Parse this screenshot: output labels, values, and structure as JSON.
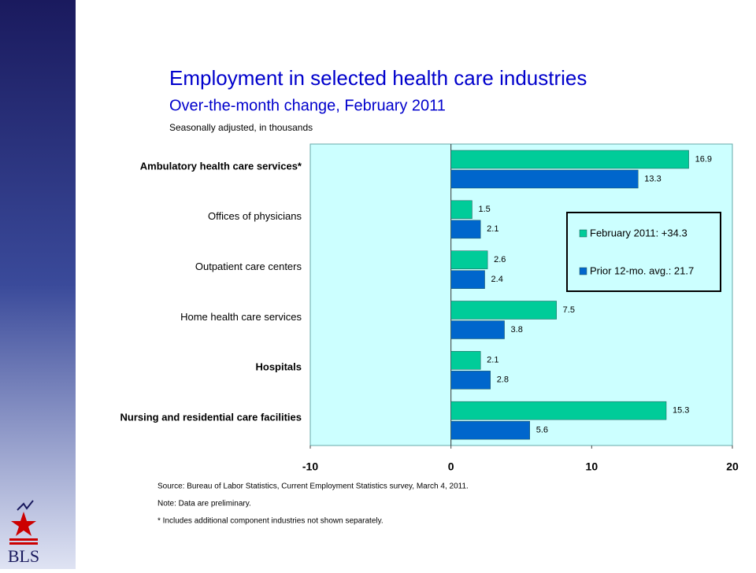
{
  "chart_data": {
    "type": "bar",
    "orientation": "horizontal",
    "title": "Employment in selected health care industries",
    "subtitle": "Over-the-month change, February 2011",
    "unit_note": "Seasonally adjusted, in thousands",
    "categories": [
      "Ambulatory health care services*",
      "Offices of physicians",
      "Outpatient care centers",
      "Home health care services",
      "Hospitals",
      "Nursing and residential care facilities"
    ],
    "series": [
      {
        "name": "February 2011: +34.3",
        "color": "#00cc99",
        "values": [
          16.9,
          1.5,
          2.6,
          7.5,
          2.1,
          15.3
        ]
      },
      {
        "name": "Prior 12-mo. avg.: 21.7",
        "color": "#0066cc",
        "values": [
          13.3,
          2.1,
          2.4,
          3.8,
          2.8,
          5.6
        ]
      }
    ],
    "xlim": [
      -10,
      20
    ],
    "xticks": [
      -10,
      0,
      10,
      20
    ],
    "legend": "right",
    "notes": [
      "Source:  Bureau of Labor Statistics, Current Employment Statistics survey, March 4, 2011.",
      "Note: Data are preliminary.",
      "* Includes additional component industries not shown separately."
    ],
    "logo": "BLS"
  }
}
